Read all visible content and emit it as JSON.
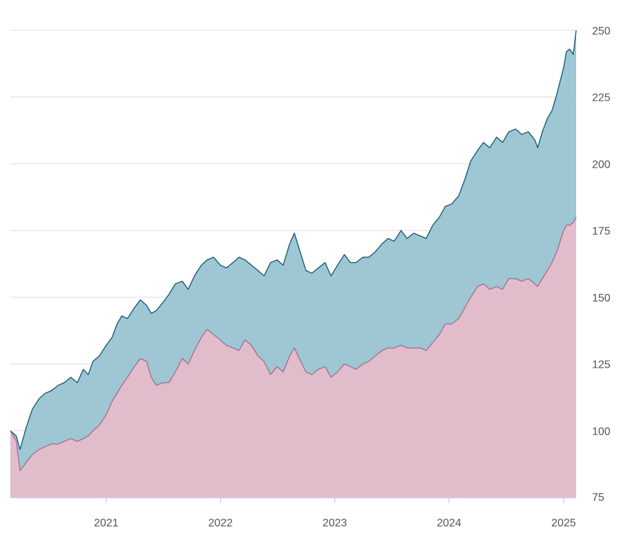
{
  "chart_data": {
    "type": "area",
    "title": "",
    "xlabel": "",
    "ylabel": "",
    "xlim": [
      "2020-03-01",
      "2025-02-10"
    ],
    "ylim": [
      75,
      250
    ],
    "grid": true,
    "legend": "none",
    "y_axis_position": "right",
    "y_ticks": [
      "75",
      "100",
      "125",
      "150",
      "175",
      "200",
      "225",
      "250"
    ],
    "x_ticks": [
      {
        "label": "2021",
        "date": "2021-01-01"
      },
      {
        "label": "2022",
        "date": "2022-01-01"
      },
      {
        "label": "2023",
        "date": "2023-01-01"
      },
      {
        "label": "2024",
        "date": "2024-01-01"
      },
      {
        "label": "2025",
        "date": "2025-01-01"
      }
    ],
    "series": [
      {
        "line_color": "#0e5e7e",
        "fill_color": "#96c1cf",
        "points": [
          [
            "2020-03-01",
            100
          ],
          [
            "2020-03-20",
            98
          ],
          [
            "2020-04-01",
            93
          ],
          [
            "2020-04-20",
            101
          ],
          [
            "2020-05-10",
            108
          ],
          [
            "2020-06-01",
            112
          ],
          [
            "2020-06-20",
            114
          ],
          [
            "2020-07-10",
            115
          ],
          [
            "2020-08-01",
            117
          ],
          [
            "2020-08-20",
            118
          ],
          [
            "2020-09-10",
            120
          ],
          [
            "2020-10-01",
            118
          ],
          [
            "2020-10-20",
            123
          ],
          [
            "2020-11-05",
            121
          ],
          [
            "2020-11-20",
            126
          ],
          [
            "2020-12-10",
            128
          ],
          [
            "2021-01-01",
            132
          ],
          [
            "2021-01-20",
            135
          ],
          [
            "2021-02-05",
            140
          ],
          [
            "2021-02-20",
            143
          ],
          [
            "2021-03-10",
            142
          ],
          [
            "2021-04-01",
            146
          ],
          [
            "2021-04-20",
            149
          ],
          [
            "2021-05-10",
            147
          ],
          [
            "2021-05-25",
            144
          ],
          [
            "2021-06-10",
            145
          ],
          [
            "2021-07-01",
            148
          ],
          [
            "2021-07-20",
            151
          ],
          [
            "2021-08-10",
            155
          ],
          [
            "2021-09-01",
            156
          ],
          [
            "2021-09-20",
            153
          ],
          [
            "2021-10-10",
            158
          ],
          [
            "2021-11-01",
            162
          ],
          [
            "2021-11-20",
            164
          ],
          [
            "2021-12-10",
            165
          ],
          [
            "2022-01-01",
            162
          ],
          [
            "2022-01-20",
            161
          ],
          [
            "2022-02-10",
            163
          ],
          [
            "2022-03-01",
            165
          ],
          [
            "2022-03-20",
            164
          ],
          [
            "2022-04-10",
            162
          ],
          [
            "2022-05-01",
            160
          ],
          [
            "2022-05-20",
            158
          ],
          [
            "2022-06-10",
            163
          ],
          [
            "2022-07-01",
            164
          ],
          [
            "2022-07-20",
            162
          ],
          [
            "2022-08-10",
            170
          ],
          [
            "2022-08-25",
            174
          ],
          [
            "2022-09-10",
            168
          ],
          [
            "2022-10-01",
            160
          ],
          [
            "2022-10-20",
            159
          ],
          [
            "2022-11-10",
            161
          ],
          [
            "2022-12-01",
            163
          ],
          [
            "2022-12-20",
            158
          ],
          [
            "2023-01-10",
            162
          ],
          [
            "2023-02-01",
            166
          ],
          [
            "2023-02-20",
            163
          ],
          [
            "2023-03-10",
            163
          ],
          [
            "2023-04-01",
            165
          ],
          [
            "2023-04-20",
            165
          ],
          [
            "2023-05-10",
            167
          ],
          [
            "2023-06-01",
            170
          ],
          [
            "2023-06-20",
            172
          ],
          [
            "2023-07-10",
            171
          ],
          [
            "2023-08-01",
            175
          ],
          [
            "2023-08-20",
            172
          ],
          [
            "2023-09-10",
            174
          ],
          [
            "2023-10-01",
            173
          ],
          [
            "2023-10-20",
            172
          ],
          [
            "2023-11-10",
            177
          ],
          [
            "2023-12-01",
            180
          ],
          [
            "2023-12-20",
            184
          ],
          [
            "2024-01-10",
            185
          ],
          [
            "2024-02-01",
            188
          ],
          [
            "2024-02-20",
            194
          ],
          [
            "2024-03-10",
            201
          ],
          [
            "2024-04-01",
            205
          ],
          [
            "2024-04-20",
            208
          ],
          [
            "2024-05-10",
            206
          ],
          [
            "2024-06-01",
            210
          ],
          [
            "2024-06-20",
            208
          ],
          [
            "2024-07-10",
            212
          ],
          [
            "2024-08-01",
            213
          ],
          [
            "2024-08-20",
            211
          ],
          [
            "2024-09-10",
            212
          ],
          [
            "2024-10-01",
            209
          ],
          [
            "2024-10-10",
            206
          ],
          [
            "2024-10-25",
            212
          ],
          [
            "2024-11-10",
            217
          ],
          [
            "2024-11-25",
            220
          ],
          [
            "2024-12-10",
            226
          ],
          [
            "2025-01-01",
            236
          ],
          [
            "2025-01-10",
            242
          ],
          [
            "2025-01-20",
            243
          ],
          [
            "2025-02-01",
            241
          ],
          [
            "2025-02-10",
            250
          ]
        ]
      },
      {
        "line_color": "#b56a88",
        "fill_color": "#e7bccb",
        "points": [
          [
            "2020-03-01",
            100
          ],
          [
            "2020-03-20",
            96
          ],
          [
            "2020-04-01",
            85
          ],
          [
            "2020-04-20",
            88
          ],
          [
            "2020-05-10",
            91
          ],
          [
            "2020-06-01",
            93
          ],
          [
            "2020-06-20",
            94
          ],
          [
            "2020-07-10",
            95
          ],
          [
            "2020-08-01",
            95
          ],
          [
            "2020-08-20",
            96
          ],
          [
            "2020-09-10",
            97
          ],
          [
            "2020-10-01",
            96
          ],
          [
            "2020-10-20",
            97
          ],
          [
            "2020-11-05",
            98
          ],
          [
            "2020-11-20",
            100
          ],
          [
            "2020-12-10",
            102
          ],
          [
            "2021-01-01",
            106
          ],
          [
            "2021-01-20",
            111
          ],
          [
            "2021-02-05",
            114
          ],
          [
            "2021-02-20",
            117
          ],
          [
            "2021-03-10",
            120
          ],
          [
            "2021-04-01",
            124
          ],
          [
            "2021-04-20",
            127
          ],
          [
            "2021-05-10",
            126
          ],
          [
            "2021-05-25",
            120
          ],
          [
            "2021-06-10",
            117
          ],
          [
            "2021-07-01",
            118
          ],
          [
            "2021-07-20",
            118
          ],
          [
            "2021-08-10",
            122
          ],
          [
            "2021-09-01",
            127
          ],
          [
            "2021-09-20",
            125
          ],
          [
            "2021-10-10",
            130
          ],
          [
            "2021-11-01",
            135
          ],
          [
            "2021-11-20",
            138
          ],
          [
            "2021-12-10",
            136
          ],
          [
            "2022-01-01",
            134
          ],
          [
            "2022-01-20",
            132
          ],
          [
            "2022-02-10",
            131
          ],
          [
            "2022-03-01",
            130
          ],
          [
            "2022-03-20",
            134
          ],
          [
            "2022-04-10",
            132
          ],
          [
            "2022-05-01",
            128
          ],
          [
            "2022-05-20",
            126
          ],
          [
            "2022-06-10",
            121
          ],
          [
            "2022-07-01",
            124
          ],
          [
            "2022-07-20",
            122
          ],
          [
            "2022-08-10",
            128
          ],
          [
            "2022-08-25",
            131
          ],
          [
            "2022-09-10",
            127
          ],
          [
            "2022-10-01",
            122
          ],
          [
            "2022-10-20",
            121
          ],
          [
            "2022-11-10",
            123
          ],
          [
            "2022-12-01",
            124
          ],
          [
            "2022-12-20",
            120
          ],
          [
            "2023-01-10",
            122
          ],
          [
            "2023-02-01",
            125
          ],
          [
            "2023-02-20",
            124
          ],
          [
            "2023-03-10",
            123
          ],
          [
            "2023-04-01",
            125
          ],
          [
            "2023-04-20",
            126
          ],
          [
            "2023-05-10",
            128
          ],
          [
            "2023-06-01",
            130
          ],
          [
            "2023-06-20",
            131
          ],
          [
            "2023-07-10",
            131
          ],
          [
            "2023-08-01",
            132
          ],
          [
            "2023-08-20",
            131
          ],
          [
            "2023-09-10",
            131
          ],
          [
            "2023-10-01",
            131
          ],
          [
            "2023-10-20",
            130
          ],
          [
            "2023-11-10",
            133
          ],
          [
            "2023-12-01",
            136
          ],
          [
            "2023-12-20",
            140
          ],
          [
            "2024-01-10",
            140
          ],
          [
            "2024-02-01",
            142
          ],
          [
            "2024-02-20",
            146
          ],
          [
            "2024-03-10",
            150
          ],
          [
            "2024-04-01",
            154
          ],
          [
            "2024-04-20",
            155
          ],
          [
            "2024-05-10",
            153
          ],
          [
            "2024-06-01",
            154
          ],
          [
            "2024-06-20",
            153
          ],
          [
            "2024-07-10",
            157
          ],
          [
            "2024-08-01",
            157
          ],
          [
            "2024-08-20",
            156
          ],
          [
            "2024-09-10",
            157
          ],
          [
            "2024-10-01",
            155
          ],
          [
            "2024-10-10",
            154
          ],
          [
            "2024-10-25",
            157
          ],
          [
            "2024-11-10",
            160
          ],
          [
            "2024-11-25",
            163
          ],
          [
            "2024-12-10",
            167
          ],
          [
            "2025-01-01",
            175
          ],
          [
            "2025-01-10",
            177
          ],
          [
            "2025-01-20",
            177
          ],
          [
            "2025-02-01",
            178
          ],
          [
            "2025-02-10",
            180
          ]
        ]
      }
    ]
  }
}
